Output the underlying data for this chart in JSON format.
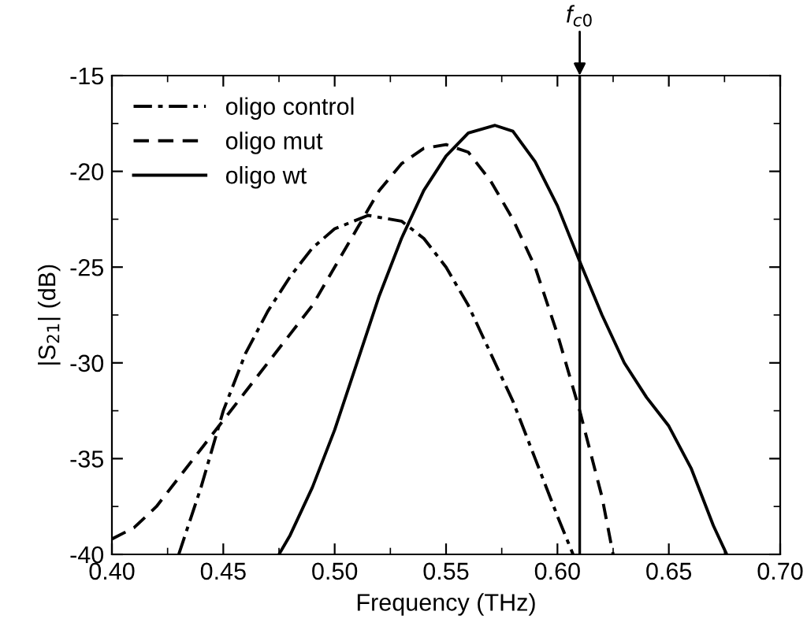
{
  "chart_data": {
    "type": "line",
    "xlabel": "Frequency (THz)",
    "ylabel": "|S$_{21}$| (dB)",
    "xlim": [
      0.4,
      0.7
    ],
    "ylim": [
      -40,
      -15
    ],
    "xticks": [
      {
        "value": 0.4,
        "label": "0.40"
      },
      {
        "value": 0.45,
        "label": "0.45"
      },
      {
        "value": 0.5,
        "label": "0.50"
      },
      {
        "value": 0.55,
        "label": "0.55"
      },
      {
        "value": 0.6,
        "label": "0.60"
      },
      {
        "value": 0.65,
        "label": "0.65"
      },
      {
        "value": 0.7,
        "label": "0.70"
      }
    ],
    "yticks": [
      -40,
      -35,
      -30,
      -25,
      -20,
      -15
    ],
    "grid": false,
    "legend": "top left",
    "marker": "none",
    "series": [
      {
        "name": "oligo control",
        "color": "#000000",
        "line_style": "dashdot",
        "x": [
          0.43,
          0.44,
          0.45,
          0.46,
          0.47,
          0.48,
          0.49,
          0.5,
          0.515,
          0.53,
          0.54,
          0.55,
          0.56,
          0.57,
          0.58,
          0.59,
          0.6,
          0.607
        ],
        "values": [
          -40,
          -36.5,
          -32.5,
          -29.5,
          -27.3,
          -25.5,
          -24,
          -23,
          -22.3,
          -22.6,
          -23.5,
          -25,
          -27,
          -29.5,
          -32,
          -35,
          -38,
          -40
        ]
      },
      {
        "name": "oligo mut",
        "color": "#000000",
        "line_style": "dashed",
        "x": [
          0.4,
          0.41,
          0.42,
          0.43,
          0.44,
          0.45,
          0.46,
          0.47,
          0.48,
          0.49,
          0.5,
          0.51,
          0.52,
          0.53,
          0.54,
          0.55,
          0.56,
          0.57,
          0.58,
          0.59,
          0.6,
          0.61,
          0.62,
          0.625
        ],
        "values": [
          -39.2,
          -38.6,
          -37.5,
          -36,
          -34.5,
          -33,
          -31.5,
          -30,
          -28.5,
          -27,
          -25,
          -23,
          -21,
          -19.6,
          -18.8,
          -18.6,
          -19,
          -20.5,
          -22.5,
          -25,
          -28.5,
          -32.5,
          -37,
          -40
        ]
      },
      {
        "name": "oligo wt",
        "color": "#000000",
        "line_style": "solid",
        "x": [
          0.475,
          0.48,
          0.49,
          0.5,
          0.51,
          0.52,
          0.53,
          0.54,
          0.55,
          0.56,
          0.572,
          0.58,
          0.59,
          0.6,
          0.61,
          0.62,
          0.63,
          0.64,
          0.65,
          0.66,
          0.67,
          0.676
        ],
        "values": [
          -40,
          -39,
          -36.5,
          -33.5,
          -30,
          -26.5,
          -23.5,
          -21,
          -19.2,
          -18,
          -17.6,
          -17.9,
          -19.5,
          -21.8,
          -24.7,
          -27.5,
          -30,
          -31.8,
          -33.3,
          -35.5,
          -38.5,
          -40
        ]
      }
    ],
    "ref_lines": [
      {
        "axis": "x",
        "value": 0.61,
        "label": "f$_{c0}$",
        "color": "#000000",
        "line_style": "solid"
      }
    ]
  }
}
